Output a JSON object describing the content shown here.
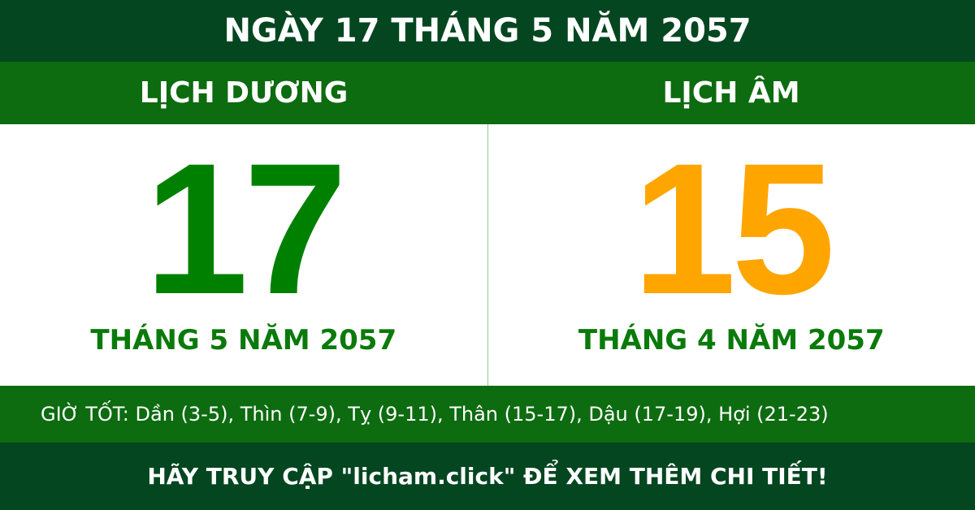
{
  "title": "NGÀY 17 THÁNG 5 NĂM 2057",
  "solar": {
    "heading": "LỊCH DƯƠNG",
    "day": "17",
    "month_year": "THÁNG 5 NĂM 2057"
  },
  "lunar": {
    "heading": "LỊCH ÂM",
    "day": "15",
    "month_year": "THÁNG 4 NĂM 2057"
  },
  "good_hours": "GIỜ TỐT: Dần (3-5), Thìn (7-9), Tỵ (9-11), Thân (15-17), Dậu (17-19), Hợi (21-23)",
  "footer": "HÃY TRUY CẬP \"licham.click\" ĐỂ XEM THÊM CHI TIẾT!",
  "colors": {
    "dark_green": "#034620",
    "green": "#0d6b10",
    "solar_day": "#008000",
    "lunar_day": "#ffa500"
  }
}
